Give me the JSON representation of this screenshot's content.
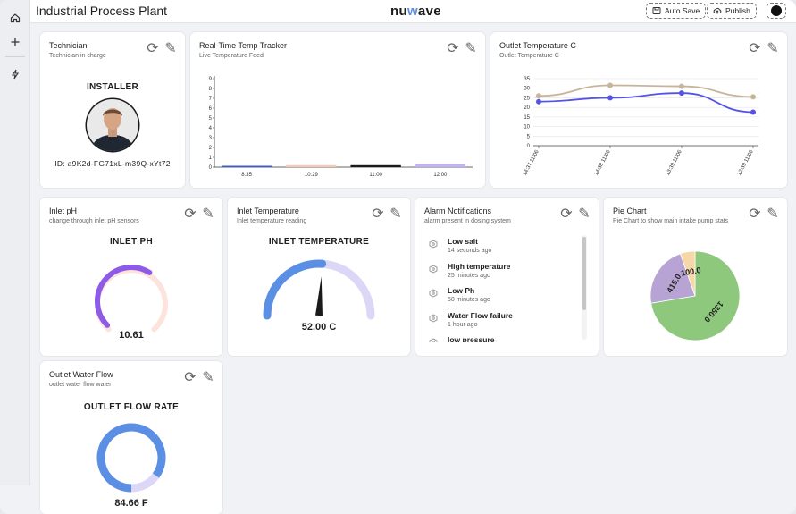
{
  "app": {
    "title": "Industrial Process Plant",
    "logo_left": "nu",
    "logo_accent": "w",
    "logo_right": "ave"
  },
  "toolbar": {
    "auto_save": "Auto Save",
    "publish": "Publish"
  },
  "sidebar": {
    "items": [
      {
        "icon": "home-icon"
      },
      {
        "icon": "plus-icon"
      },
      {
        "icon": "bolt-icon"
      }
    ]
  },
  "technician": {
    "title": "Technician",
    "subtitle": "Technician in charge",
    "role": "INSTALLER",
    "id_text": "ID: a9K2d-FG71xL-m39Q-xYt72"
  },
  "temp_tracker": {
    "title": "Real-Time Temp Tracker",
    "subtitle": "Live Temperature Feed",
    "chart_data": {
      "type": "bar",
      "categories": [
        "8:35",
        "10:29",
        "11:00",
        "12:00"
      ],
      "values": [
        0.1,
        0.2,
        0.2,
        0.3
      ],
      "colors": [
        "#3b5bdb",
        "#f4c9b8",
        "#1a1a1a",
        "#c4b0f4"
      ],
      "yticks": [
        0,
        1,
        2,
        3,
        4,
        5,
        6,
        7,
        8,
        9
      ],
      "ylim": [
        0,
        9
      ]
    }
  },
  "outlet_temp": {
    "title": "Outlet Temperature C",
    "subtitle": "Outlet Temperature C",
    "chart_data": {
      "type": "line",
      "x": [
        "14:37 11/06",
        "14:38 11/06",
        "13:39 11/06",
        "12:39 11/06"
      ],
      "yticks": [
        0,
        5,
        10,
        15,
        20,
        25,
        30,
        35
      ],
      "ylim": [
        0,
        35
      ],
      "series": [
        {
          "color": "#c8b49a",
          "values": [
            26,
            31.5,
            31,
            25.5
          ]
        },
        {
          "color": "#5553e6",
          "values": [
            23,
            25,
            27.5,
            17.5
          ]
        }
      ]
    }
  },
  "inlet_ph": {
    "title": "Inlet pH",
    "subtitle": "change through inlet pH sensors",
    "label": "INLET PH",
    "value": "10.61",
    "fraction": 0.62
  },
  "inlet_temp": {
    "title": "Inlet Temperature",
    "subtitle": "Inlet temperature reading",
    "label": "INLET TEMPERATURE",
    "value": "52.00 C",
    "fraction": 0.52
  },
  "alarms": {
    "title": "Alarm Notifications",
    "subtitle": "alarm present in dosing system",
    "items": [
      {
        "title": "Low salt",
        "time": "14 seconds ago"
      },
      {
        "title": "High temperature",
        "time": "25 minutes ago"
      },
      {
        "title": "Low Ph",
        "time": "50 minutes ago"
      },
      {
        "title": "Water Flow failure",
        "time": "1 hour ago"
      },
      {
        "title": "low pressure",
        "time": ""
      }
    ]
  },
  "pie": {
    "title": "Pie Chart",
    "subtitle": "Pie Chart to show main intake pump stats",
    "chart_data": {
      "type": "pie",
      "values": [
        1350,
        415,
        100
      ],
      "labels": [
        "1350.0",
        "415.0",
        "100.0"
      ],
      "colors": [
        "#8dc87d",
        "#b8a4d4",
        "#f6d7a7"
      ]
    }
  },
  "outlet_flow": {
    "title": "Outlet Water Flow",
    "subtitle": "outlet water flow water",
    "label": "OUTLET FLOW RATE",
    "value": "84.66 F",
    "fraction": 0.85
  }
}
